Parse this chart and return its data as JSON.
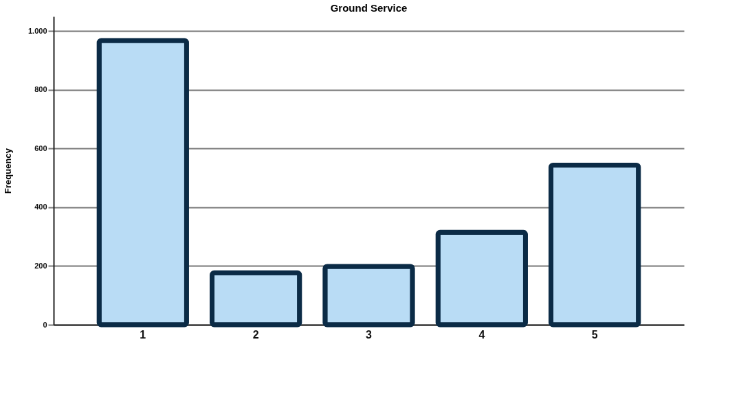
{
  "chart_data": {
    "type": "bar",
    "title": "Ground Service",
    "ylabel": "Frequency",
    "categories": [
      "1",
      "2",
      "3",
      "4",
      "5"
    ],
    "values": [
      968,
      177,
      199,
      315,
      544
    ],
    "color": "#b9dcf5",
    "ylim": [
      0,
      1050
    ],
    "yticks": [
      0,
      200,
      400,
      600,
      800,
      {
        "value": 1000,
        "label": "1.000"
      }
    ],
    "grid": "y"
  }
}
